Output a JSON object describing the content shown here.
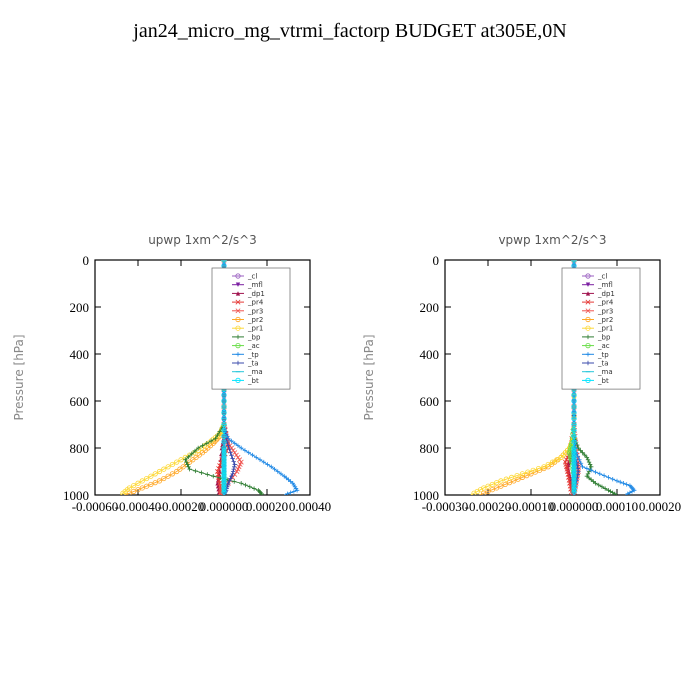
{
  "page": {
    "title": "jan24_micro_mg_vtrmi_factorp  BUDGET at305E,0N"
  },
  "legend_entries": [
    "_cl",
    "_mfl",
    "_dp1",
    "_pr4",
    "_pr3",
    "_pr2",
    "_pr1",
    "_bp",
    "_ac",
    "_tp",
    "_ta",
    "_ma",
    "_bt"
  ],
  "colors": {
    "_cl": "#9a5fc0",
    "_mfl": "#7b1fa2",
    "_dp1": "#a0144f",
    "_pr4": "#e53935",
    "_pr3": "#ef5350",
    "_pr2": "#ffa726",
    "_pr1": "#fdd835",
    "_bp": "#2e7d32",
    "_ac": "#66dd44",
    "_tp": "#1e88e5",
    "_ta": "#3949ab",
    "_ma": "#26c6da",
    "_bt": "#00e5ff"
  },
  "chart_data": [
    {
      "type": "line",
      "title": "upwp   1xm^2/s^3",
      "ylabel": "Pressure [hPa]",
      "xlabel": "",
      "xlim": [
        -0.0006,
        0.0004
      ],
      "ylim": [
        1000,
        0
      ],
      "xticks": [
        -0.0006,
        -0.0004,
        -0.0002,
        0.0,
        0.0002,
        0.0004
      ],
      "xtick_labels": [
        "-0.00060",
        "-0.00040",
        "-0.00020",
        "0.000000",
        "0.00020",
        "0.00040"
      ],
      "yticks": [
        0,
        200,
        400,
        600,
        800,
        1000
      ],
      "ytick_labels": [
        "0",
        "200",
        "400",
        "600",
        "800",
        "1000"
      ],
      "legend_position": "top-right",
      "series": [
        {
          "name": "_cl",
          "x": [
            0,
            0,
            0,
            0,
            0,
            0,
            0,
            0,
            0,
            0,
            0,
            0,
            0
          ],
          "y": [
            0,
            100,
            200,
            300,
            400,
            500,
            600,
            700,
            800,
            850,
            900,
            950,
            1000
          ]
        },
        {
          "name": "_mfl",
          "x": [
            0,
            0,
            0,
            0,
            0,
            0,
            0,
            0,
            0,
            0,
            0,
            0,
            0
          ],
          "y": [
            0,
            100,
            200,
            300,
            400,
            500,
            600,
            700,
            800,
            850,
            900,
            950,
            1000
          ]
        },
        {
          "name": "_dp1",
          "x": [
            0,
            0,
            0,
            0,
            0,
            0,
            0,
            0,
            0,
            -1e-05,
            -2e-05,
            -3e-05,
            -2e-05
          ],
          "y": [
            0,
            100,
            200,
            300,
            400,
            500,
            600,
            700,
            750,
            800,
            900,
            950,
            1000
          ]
        },
        {
          "name": "_pr4",
          "x": [
            0,
            0,
            0,
            0,
            1e-05,
            2e-05,
            -1e-05,
            -3e-05,
            -2e-05,
            -1e-05
          ],
          "y": [
            0,
            200,
            400,
            700,
            750,
            800,
            850,
            900,
            950,
            1000
          ]
        },
        {
          "name": "_pr3",
          "x": [
            0,
            0,
            0,
            2e-05,
            5e-05,
            8e-05,
            6e-05,
            2e-05,
            -1e-05,
            -2e-05
          ],
          "y": [
            0,
            400,
            700,
            780,
            820,
            860,
            900,
            950,
            980,
            1000
          ]
        },
        {
          "name": "_pr2",
          "x": [
            0,
            0,
            0,
            -2e-05,
            -5e-05,
            -0.0001,
            -0.00016,
            -0.00022,
            -0.0003,
            -0.00038,
            -0.00046
          ],
          "y": [
            0,
            400,
            700,
            750,
            780,
            820,
            860,
            900,
            940,
            970,
            1000
          ]
        },
        {
          "name": "_pr1",
          "x": [
            0,
            0,
            0,
            -2e-05,
            -6e-05,
            -0.00012,
            -0.0002,
            -0.00028,
            -0.00036,
            -0.00044,
            -0.00048
          ],
          "y": [
            0,
            400,
            700,
            740,
            770,
            810,
            850,
            890,
            930,
            970,
            1000
          ]
        },
        {
          "name": "_bp",
          "x": [
            0,
            0,
            0,
            -4e-05,
            -0.00012,
            -0.00018,
            -0.00016,
            -5e-05,
            8e-05,
            0.00016,
            0.00018
          ],
          "y": [
            0,
            400,
            700,
            760,
            800,
            850,
            890,
            920,
            950,
            980,
            1000
          ]
        },
        {
          "name": "_ac",
          "x": [
            0,
            0,
            0,
            0,
            0,
            0,
            0,
            0
          ],
          "y": [
            0,
            200,
            400,
            600,
            800,
            900,
            950,
            1000
          ]
        },
        {
          "name": "_tp",
          "x": [
            0,
            0,
            0,
            2e-05,
            8e-05,
            0.00015,
            0.00022,
            0.00028,
            0.00032,
            0.00034,
            0.00028
          ],
          "y": [
            0,
            400,
            720,
            760,
            800,
            840,
            880,
            920,
            950,
            980,
            1000
          ]
        },
        {
          "name": "_ta",
          "x": [
            0,
            0,
            0,
            1e-05,
            3e-05,
            5e-05,
            4e-05,
            2e-05,
            1e-05,
            0
          ],
          "y": [
            0,
            400,
            700,
            760,
            820,
            870,
            910,
            950,
            980,
            1000
          ]
        },
        {
          "name": "_ma",
          "x": [
            0,
            0,
            0,
            0,
            0,
            0,
            0,
            0,
            0,
            0,
            0,
            0,
            0
          ],
          "y": [
            0,
            100,
            200,
            300,
            400,
            500,
            600,
            700,
            800,
            850,
            900,
            950,
            1000
          ]
        },
        {
          "name": "_bt",
          "x": [
            0,
            0,
            0,
            0,
            0,
            0,
            0,
            0,
            0,
            0,
            0,
            0,
            0
          ],
          "y": [
            0,
            100,
            200,
            300,
            400,
            500,
            600,
            700,
            800,
            850,
            900,
            950,
            1000
          ]
        }
      ]
    },
    {
      "type": "line",
      "title": "vpwp   1xm^2/s^3",
      "ylabel": "Pressure [hPa]",
      "xlabel": "",
      "xlim": [
        -0.0003,
        0.0002
      ],
      "ylim": [
        1000,
        0
      ],
      "xticks": [
        -0.0003,
        -0.0002,
        -0.0001,
        0.0,
        0.0001,
        0.0002
      ],
      "xtick_labels": [
        "-0.00030",
        "-0.00020",
        "-0.00010",
        "0.000000",
        "0.00010",
        "0.00020"
      ],
      "yticks": [
        0,
        200,
        400,
        600,
        800,
        1000
      ],
      "ytick_labels": [
        "0",
        "200",
        "400",
        "600",
        "800",
        "1000"
      ],
      "legend_position": "top-right",
      "series": [
        {
          "name": "_cl",
          "x": [
            0,
            0,
            0,
            0,
            0,
            0,
            0,
            0,
            0,
            0,
            0,
            0,
            0
          ],
          "y": [
            0,
            100,
            200,
            300,
            400,
            500,
            600,
            700,
            800,
            850,
            900,
            950,
            1000
          ]
        },
        {
          "name": "_mfl",
          "x": [
            0,
            0,
            0,
            0,
            0,
            0,
            0,
            0,
            0,
            0,
            0,
            0,
            0
          ],
          "y": [
            0,
            100,
            200,
            300,
            400,
            500,
            600,
            700,
            800,
            850,
            900,
            950,
            1000
          ]
        },
        {
          "name": "_dp1",
          "x": [
            0,
            0,
            0,
            0,
            -1e-05,
            -1.5e-05,
            -1e-05,
            -5e-06,
            0
          ],
          "y": [
            0,
            400,
            700,
            800,
            850,
            880,
            920,
            960,
            1000
          ]
        },
        {
          "name": "_pr4",
          "x": [
            0,
            0,
            0,
            -1e-05,
            -2e-05,
            -1.5e-05,
            -1e-05,
            -5e-06
          ],
          "y": [
            0,
            400,
            700,
            820,
            860,
            900,
            950,
            1000
          ]
        },
        {
          "name": "_pr3",
          "x": [
            0,
            0,
            0,
            5e-06,
            1e-05,
            1e-05,
            5e-06,
            0
          ],
          "y": [
            0,
            400,
            700,
            800,
            860,
            900,
            950,
            1000
          ]
        },
        {
          "name": "_pr2",
          "x": [
            0,
            0,
            0,
            -1e-05,
            -3e-05,
            -6e-05,
            -0.0001,
            -0.00014,
            -0.00018,
            -0.00022
          ],
          "y": [
            0,
            400,
            750,
            800,
            840,
            880,
            910,
            940,
            970,
            1000
          ]
        },
        {
          "name": "_pr1",
          "x": [
            0,
            0,
            0,
            -1e-05,
            -3e-05,
            -7e-05,
            -0.00012,
            -0.00017,
            -0.00021,
            -0.00024
          ],
          "y": [
            0,
            400,
            760,
            800,
            840,
            880,
            910,
            940,
            970,
            1000
          ]
        },
        {
          "name": "_bp",
          "x": [
            0,
            0,
            0,
            1e-05,
            3e-05,
            4e-05,
            3e-05,
            5e-05,
            8e-05,
            0.0001
          ],
          "y": [
            0,
            400,
            750,
            800,
            840,
            880,
            920,
            950,
            980,
            1000
          ]
        },
        {
          "name": "_ac",
          "x": [
            0,
            0,
            0,
            -5e-06,
            -1e-05,
            -5e-06,
            0,
            0
          ],
          "y": [
            0,
            400,
            700,
            780,
            820,
            860,
            920,
            1000
          ]
        },
        {
          "name": "_tp",
          "x": [
            0,
            0,
            0,
            5e-06,
            2e-05,
            6e-05,
            0.0001,
            0.00013,
            0.00014,
            0.00012
          ],
          "y": [
            0,
            400,
            750,
            820,
            880,
            910,
            940,
            960,
            980,
            1000
          ]
        },
        {
          "name": "_ta",
          "x": [
            0,
            0,
            0,
            5e-06,
            1e-05,
            5e-06,
            0
          ],
          "y": [
            0,
            400,
            750,
            850,
            900,
            950,
            1000
          ]
        },
        {
          "name": "_ma",
          "x": [
            0,
            0,
            0,
            0,
            0,
            0,
            0,
            0,
            0,
            0,
            0,
            0,
            0
          ],
          "y": [
            0,
            100,
            200,
            300,
            400,
            500,
            600,
            700,
            800,
            850,
            900,
            950,
            1000
          ]
        },
        {
          "name": "_bt",
          "x": [
            0,
            0,
            0,
            0,
            0,
            0,
            0,
            0,
            0,
            0,
            0,
            0,
            0
          ],
          "y": [
            0,
            100,
            200,
            300,
            400,
            500,
            600,
            700,
            800,
            850,
            900,
            950,
            1000
          ]
        }
      ]
    }
  ]
}
